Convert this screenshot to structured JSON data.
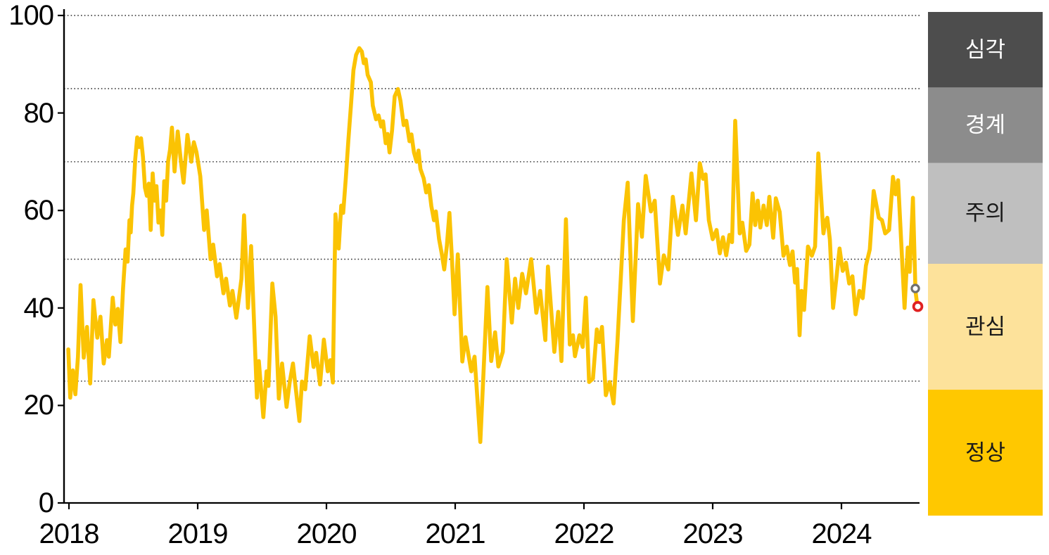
{
  "chart_data": {
    "type": "line",
    "title": "",
    "xlabel": "",
    "ylabel": "",
    "ylim": [
      0,
      100
    ],
    "xlim": [
      2017.99,
      2024.66
    ],
    "grid": "dotted-horizontal",
    "gridlines": [
      100,
      85,
      70,
      50,
      25
    ],
    "y_ticks": [
      0,
      20,
      40,
      60,
      80,
      100
    ],
    "y_tick_labels": [
      "0",
      "20",
      "40",
      "60",
      "80",
      "100"
    ],
    "x_ticks": [
      2018,
      2019,
      2020,
      2021,
      2022,
      2023,
      2024
    ],
    "x_tick_labels": [
      "2018",
      "2019",
      "2020",
      "2021",
      "2022",
      "2023",
      "2024"
    ],
    "legend_position": "right",
    "zones": [
      {
        "label": "심각",
        "from": 85,
        "to": 100,
        "color": "#4D4D4D",
        "text_color": "#FFFFFF"
      },
      {
        "label": "경계",
        "from": 70,
        "to": 85,
        "color": "#8C8C8C",
        "text_color": "#FFFFFF"
      },
      {
        "label": "주의",
        "from": 50,
        "to": 70,
        "color": "#BFBFBF",
        "text_color": "#1A1A1A"
      },
      {
        "label": "관심",
        "from": 25,
        "to": 50,
        "color": "#FDE29B",
        "text_color": "#1A1A1A"
      },
      {
        "label": "정상",
        "from": 0,
        "to": 25,
        "color": "#FFC800",
        "text_color": "#1A1A1A"
      }
    ],
    "markers": [
      {
        "name": "previous-value-marker",
        "x": 2024.574,
        "value": 44.0,
        "color": "#6F6F6F"
      },
      {
        "name": "latest-value-marker",
        "x": 2024.593,
        "value": 40.3,
        "color": "#E02121"
      }
    ],
    "series": [
      {
        "color": "#FBC303",
        "points": [
          [
            2017.995,
            31.5
          ],
          [
            2018.01,
            21.6
          ],
          [
            2018.03,
            27.2
          ],
          [
            2018.05,
            22.3
          ],
          [
            2018.07,
            30
          ],
          [
            2018.09,
            44.7
          ],
          [
            2018.115,
            29.8
          ],
          [
            2018.14,
            36.1
          ],
          [
            2018.165,
            24.5
          ],
          [
            2018.19,
            41.6
          ],
          [
            2018.22,
            33.9
          ],
          [
            2018.245,
            38.2
          ],
          [
            2018.27,
            28.6
          ],
          [
            2018.295,
            33.4
          ],
          [
            2018.31,
            30
          ],
          [
            2018.34,
            42.1
          ],
          [
            2018.36,
            36.6
          ],
          [
            2018.38,
            39.8
          ],
          [
            2018.4,
            33
          ],
          [
            2018.42,
            44
          ],
          [
            2018.44,
            52
          ],
          [
            2018.455,
            49.5
          ],
          [
            2018.47,
            58
          ],
          [
            2018.48,
            55.5
          ],
          [
            2018.49,
            61
          ],
          [
            2018.5,
            63.5
          ],
          [
            2018.515,
            70.5
          ],
          [
            2018.53,
            75
          ],
          [
            2018.545,
            73
          ],
          [
            2018.56,
            74.8
          ],
          [
            2018.575,
            71
          ],
          [
            2018.59,
            64.7
          ],
          [
            2018.605,
            63
          ],
          [
            2018.62,
            65.5
          ],
          [
            2018.635,
            56
          ],
          [
            2018.65,
            67.6
          ],
          [
            2018.665,
            62
          ],
          [
            2018.68,
            65
          ],
          [
            2018.695,
            57.5
          ],
          [
            2018.71,
            60
          ],
          [
            2018.725,
            55
          ],
          [
            2018.74,
            66
          ],
          [
            2018.755,
            62
          ],
          [
            2018.77,
            70
          ],
          [
            2018.785,
            72.5
          ],
          [
            2018.8,
            77
          ],
          [
            2018.82,
            68
          ],
          [
            2018.845,
            76.2
          ],
          [
            2018.87,
            70
          ],
          [
            2018.89,
            65.7
          ],
          [
            2018.92,
            75.5
          ],
          [
            2018.95,
            70
          ],
          [
            2018.97,
            74
          ],
          [
            2018.99,
            72
          ],
          [
            2019.02,
            67
          ],
          [
            2019.05,
            56
          ],
          [
            2019.07,
            60
          ],
          [
            2019.1,
            50
          ],
          [
            2019.12,
            53
          ],
          [
            2019.15,
            46.5
          ],
          [
            2019.17,
            49
          ],
          [
            2019.2,
            43
          ],
          [
            2019.22,
            46
          ],
          [
            2019.25,
            40.5
          ],
          [
            2019.27,
            43.5
          ],
          [
            2019.3,
            38
          ],
          [
            2019.32,
            42
          ],
          [
            2019.34,
            46
          ],
          [
            2019.36,
            59
          ],
          [
            2019.39,
            40
          ],
          [
            2019.415,
            52.7
          ],
          [
            2019.46,
            21.6
          ],
          [
            2019.475,
            29.1
          ],
          [
            2019.51,
            17.6
          ],
          [
            2019.535,
            27
          ],
          [
            2019.55,
            24
          ],
          [
            2019.58,
            45
          ],
          [
            2019.605,
            38.2
          ],
          [
            2019.63,
            21.4
          ],
          [
            2019.655,
            28.6
          ],
          [
            2019.69,
            19.7
          ],
          [
            2019.715,
            24.8
          ],
          [
            2019.74,
            28.6
          ],
          [
            2019.79,
            16.8
          ],
          [
            2019.81,
            24.9
          ],
          [
            2019.835,
            23.3
          ],
          [
            2019.87,
            34.2
          ],
          [
            2019.9,
            27.9
          ],
          [
            2019.92,
            30.8
          ],
          [
            2019.95,
            24.3
          ],
          [
            2019.98,
            33.5
          ],
          [
            2020.01,
            27
          ],
          [
            2020.03,
            29.3
          ],
          [
            2020.05,
            24.7
          ],
          [
            2020.07,
            59.2
          ],
          [
            2020.095,
            52.2
          ],
          [
            2020.115,
            61
          ],
          [
            2020.13,
            59.5
          ],
          [
            2020.15,
            66.6
          ],
          [
            2020.17,
            74.3
          ],
          [
            2020.19,
            81.5
          ],
          [
            2020.21,
            88.8
          ],
          [
            2020.23,
            91.9
          ],
          [
            2020.255,
            93.3
          ],
          [
            2020.275,
            92.6
          ],
          [
            2020.29,
            90.2
          ],
          [
            2020.305,
            91
          ],
          [
            2020.32,
            87.8
          ],
          [
            2020.345,
            86.3
          ],
          [
            2020.36,
            81.5
          ],
          [
            2020.385,
            78.7
          ],
          [
            2020.405,
            79.5
          ],
          [
            2020.425,
            77.2
          ],
          [
            2020.44,
            78.3
          ],
          [
            2020.46,
            73.8
          ],
          [
            2020.475,
            75.7
          ],
          [
            2020.49,
            71.9
          ],
          [
            2020.51,
            76.5
          ],
          [
            2020.53,
            83.4
          ],
          [
            2020.555,
            84.9
          ],
          [
            2020.575,
            82.5
          ],
          [
            2020.6,
            77.5
          ],
          [
            2020.62,
            78.4
          ],
          [
            2020.645,
            74.2
          ],
          [
            2020.66,
            75.6
          ],
          [
            2020.68,
            71.9
          ],
          [
            2020.7,
            70
          ],
          [
            2020.715,
            72.3
          ],
          [
            2020.73,
            68.5
          ],
          [
            2020.755,
            66.6
          ],
          [
            2020.775,
            63.7
          ],
          [
            2020.795,
            65.2
          ],
          [
            2020.815,
            60.9
          ],
          [
            2020.835,
            58
          ],
          [
            2020.85,
            59.8
          ],
          [
            2020.875,
            54.1
          ],
          [
            2020.895,
            51.2
          ],
          [
            2020.915,
            47.9
          ],
          [
            2020.935,
            52.7
          ],
          [
            2020.955,
            59.5
          ],
          [
            2020.975,
            50
          ],
          [
            2020.995,
            38.7
          ],
          [
            2021.02,
            51
          ],
          [
            2021.055,
            29
          ],
          [
            2021.08,
            34
          ],
          [
            2021.125,
            27
          ],
          [
            2021.15,
            30
          ],
          [
            2021.195,
            12.5
          ],
          [
            2021.25,
            44.3
          ],
          [
            2021.28,
            29.1
          ],
          [
            2021.31,
            35
          ],
          [
            2021.335,
            28
          ],
          [
            2021.37,
            31
          ],
          [
            2021.4,
            50
          ],
          [
            2021.44,
            37
          ],
          [
            2021.465,
            46
          ],
          [
            2021.49,
            40
          ],
          [
            2021.52,
            47
          ],
          [
            2021.55,
            43
          ],
          [
            2021.59,
            50
          ],
          [
            2021.63,
            39
          ],
          [
            2021.66,
            43.5
          ],
          [
            2021.7,
            33.4
          ],
          [
            2021.72,
            48.5
          ],
          [
            2021.77,
            31
          ],
          [
            2021.8,
            39.2
          ],
          [
            2021.825,
            29.1
          ],
          [
            2021.86,
            58.2
          ],
          [
            2021.89,
            32.5
          ],
          [
            2021.915,
            34.4
          ],
          [
            2021.93,
            30.1
          ],
          [
            2021.965,
            34.4
          ],
          [
            2021.99,
            32
          ],
          [
            2022.015,
            42.1
          ],
          [
            2022.04,
            24.8
          ],
          [
            2022.07,
            25.5
          ],
          [
            2022.1,
            35.6
          ],
          [
            2022.12,
            33
          ],
          [
            2022.14,
            36.1
          ],
          [
            2022.17,
            22.1
          ],
          [
            2022.2,
            24.8
          ],
          [
            2022.23,
            20.4
          ],
          [
            2022.26,
            33
          ],
          [
            2022.31,
            58
          ],
          [
            2022.34,
            65.7
          ],
          [
            2022.38,
            37.3
          ],
          [
            2022.42,
            61.3
          ],
          [
            2022.45,
            54.6
          ],
          [
            2022.48,
            67.1
          ],
          [
            2022.52,
            59.8
          ],
          [
            2022.55,
            62
          ],
          [
            2022.59,
            45
          ],
          [
            2022.62,
            50.8
          ],
          [
            2022.655,
            47.9
          ],
          [
            2022.69,
            62.8
          ],
          [
            2022.73,
            55
          ],
          [
            2022.765,
            61
          ],
          [
            2022.79,
            55.3
          ],
          [
            2022.835,
            67.6
          ],
          [
            2022.87,
            58
          ],
          [
            2022.9,
            69.7
          ],
          [
            2022.925,
            66.5
          ],
          [
            2022.945,
            67.4
          ],
          [
            2022.97,
            58
          ],
          [
            2023.0,
            54.1
          ],
          [
            2023.03,
            56
          ],
          [
            2023.055,
            51.2
          ],
          [
            2023.08,
            54.5
          ],
          [
            2023.105,
            50.8
          ],
          [
            2023.13,
            55
          ],
          [
            2023.15,
            53.5
          ],
          [
            2023.175,
            78.4
          ],
          [
            2023.21,
            55.3
          ],
          [
            2023.23,
            57.5
          ],
          [
            2023.26,
            51.7
          ],
          [
            2023.285,
            53
          ],
          [
            2023.31,
            63.5
          ],
          [
            2023.33,
            57
          ],
          [
            2023.35,
            62
          ],
          [
            2023.37,
            56.5
          ],
          [
            2023.395,
            61
          ],
          [
            2023.42,
            57
          ],
          [
            2023.44,
            62.8
          ],
          [
            2023.47,
            54.4
          ],
          [
            2023.49,
            62.5
          ],
          [
            2023.52,
            59.7
          ],
          [
            2023.55,
            50.7
          ],
          [
            2023.575,
            52.6
          ],
          [
            2023.6,
            48.8
          ],
          [
            2023.62,
            51.6
          ],
          [
            2023.64,
            45.2
          ],
          [
            2023.655,
            48
          ],
          [
            2023.675,
            34.4
          ],
          [
            2023.69,
            43.5
          ],
          [
            2023.71,
            39.6
          ],
          [
            2023.74,
            52.6
          ],
          [
            2023.77,
            50.7
          ],
          [
            2023.795,
            52.6
          ],
          [
            2023.82,
            71.7
          ],
          [
            2023.86,
            55.3
          ],
          [
            2023.875,
            57.7
          ],
          [
            2023.89,
            58.5
          ],
          [
            2023.91,
            54.1
          ],
          [
            2023.935,
            40
          ],
          [
            2023.96,
            46
          ],
          [
            2023.985,
            52.2
          ],
          [
            2024.01,
            47.6
          ],
          [
            2024.035,
            49.3
          ],
          [
            2024.06,
            45
          ],
          [
            2024.085,
            46.5
          ],
          [
            2024.11,
            38.7
          ],
          [
            2024.14,
            43.5
          ],
          [
            2024.165,
            42
          ],
          [
            2024.19,
            48.7
          ],
          [
            2024.22,
            52
          ],
          [
            2024.25,
            64
          ],
          [
            2024.29,
            58.5
          ],
          [
            2024.315,
            58
          ],
          [
            2024.34,
            55.3
          ],
          [
            2024.37,
            56
          ],
          [
            2024.4,
            66.9
          ],
          [
            2024.42,
            63.3
          ],
          [
            2024.44,
            66.2
          ],
          [
            2024.49,
            40
          ],
          [
            2024.515,
            52.4
          ],
          [
            2024.53,
            47.4
          ],
          [
            2024.555,
            62.6
          ],
          [
            2024.575,
            43.5
          ],
          [
            2024.59,
            40.3
          ]
        ]
      }
    ]
  }
}
